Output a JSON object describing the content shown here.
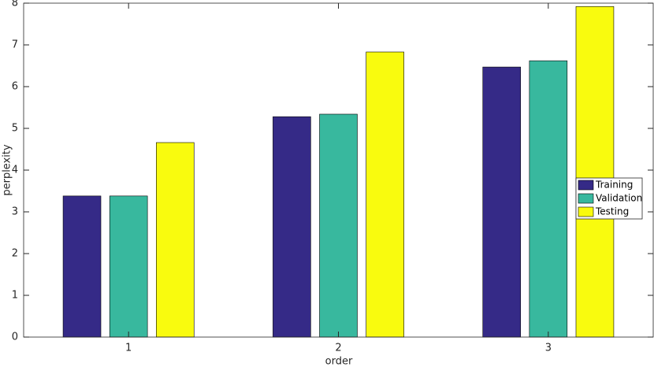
{
  "chart_data": {
    "type": "bar",
    "x_label": "order",
    "y_label": "perplexity",
    "x": [
      1,
      2,
      3
    ],
    "xlim": [
      0.5,
      3.5
    ],
    "xticks": [
      1,
      2,
      3
    ],
    "ylim": [
      0,
      8
    ],
    "yticks": [
      0,
      1,
      2,
      3,
      4,
      5,
      6,
      7,
      8
    ],
    "legend": "east",
    "series": [
      {
        "name": "Training",
        "color": "#352a87",
        "values": [
          3.38,
          5.28,
          6.47
        ]
      },
      {
        "name": "Validation",
        "color": "#38b89e",
        "values": [
          3.38,
          5.34,
          6.62
        ]
      },
      {
        "name": "Testing",
        "color": "#f9fb0e",
        "values": [
          4.66,
          6.83,
          7.92
        ]
      }
    ]
  }
}
